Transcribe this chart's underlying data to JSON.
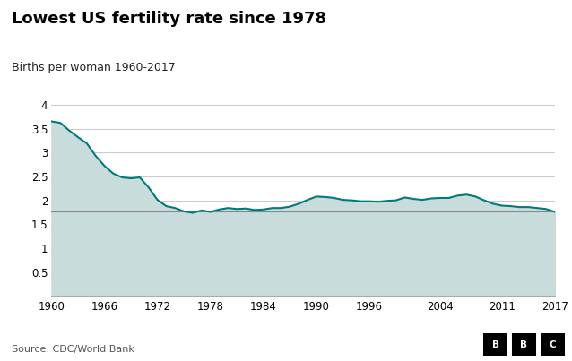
{
  "title": "Lowest US fertility rate since 1978",
  "subtitle": "Births per woman 1960-2017",
  "source": "Source: CDC/World Bank",
  "line_color": "#007A7A",
  "fill_color": "#C8DCDC",
  "reference_line": 1.76,
  "reference_line_color": "#888888",
  "background_color": "#ffffff",
  "grid_color": "#cccccc",
  "xlim": [
    1960,
    2017
  ],
  "ylim": [
    0,
    4.15
  ],
  "yticks": [
    0,
    0.5,
    1,
    1.5,
    2,
    2.5,
    3,
    3.5,
    4
  ],
  "xticks": [
    1960,
    1966,
    1972,
    1978,
    1984,
    1990,
    1996,
    2004,
    2011,
    2017
  ],
  "years": [
    1960,
    1961,
    1962,
    1963,
    1964,
    1965,
    1966,
    1967,
    1968,
    1969,
    1970,
    1971,
    1972,
    1973,
    1974,
    1975,
    1976,
    1977,
    1978,
    1979,
    1980,
    1981,
    1982,
    1983,
    1984,
    1985,
    1986,
    1987,
    1988,
    1989,
    1990,
    1991,
    1992,
    1993,
    1994,
    1995,
    1996,
    1997,
    1998,
    1999,
    2000,
    2001,
    2002,
    2003,
    2004,
    2005,
    2006,
    2007,
    2008,
    2009,
    2010,
    2011,
    2012,
    2013,
    2014,
    2015,
    2016,
    2017
  ],
  "values": [
    3.65,
    3.62,
    3.46,
    3.32,
    3.19,
    2.93,
    2.72,
    2.56,
    2.48,
    2.46,
    2.48,
    2.27,
    2.01,
    1.88,
    1.84,
    1.77,
    1.74,
    1.79,
    1.76,
    1.81,
    1.84,
    1.82,
    1.83,
    1.8,
    1.81,
    1.84,
    1.84,
    1.87,
    1.93,
    2.01,
    2.08,
    2.07,
    2.05,
    2.01,
    2.0,
    1.98,
    1.98,
    1.97,
    1.99,
    2.0,
    2.06,
    2.03,
    2.01,
    2.04,
    2.05,
    2.05,
    2.1,
    2.12,
    2.08,
    2.0,
    1.93,
    1.89,
    1.88,
    1.86,
    1.86,
    1.84,
    1.82,
    1.76
  ]
}
